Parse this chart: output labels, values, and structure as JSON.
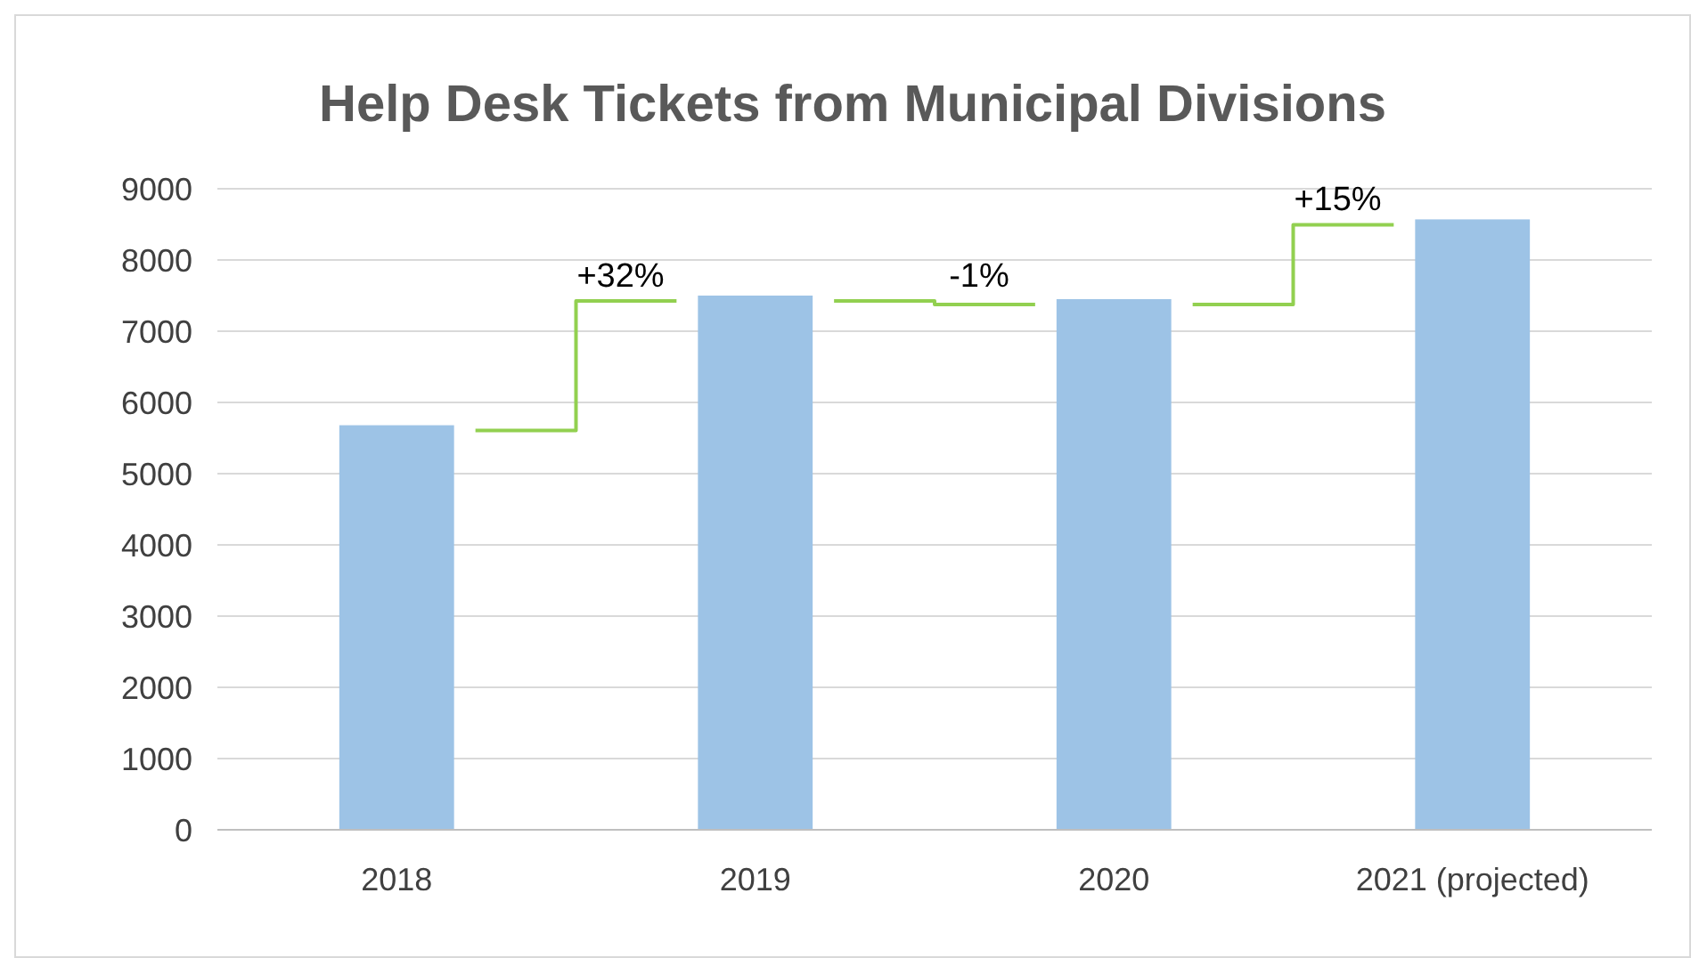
{
  "chart_data": {
    "type": "bar",
    "title": "Help Desk Tickets from Municipal Divisions",
    "categories": [
      "2018",
      "2019",
      "2020",
      "2021 (projected)"
    ],
    "values": [
      5680,
      7500,
      7450,
      8570
    ],
    "color": "#9dc3e6",
    "ylim": [
      0,
      9000
    ],
    "yticks": [
      0,
      1000,
      2000,
      3000,
      4000,
      5000,
      6000,
      7000,
      8000,
      9000
    ],
    "grid": "y",
    "annotations": [
      "+32%",
      "-1%",
      "+15%"
    ]
  }
}
